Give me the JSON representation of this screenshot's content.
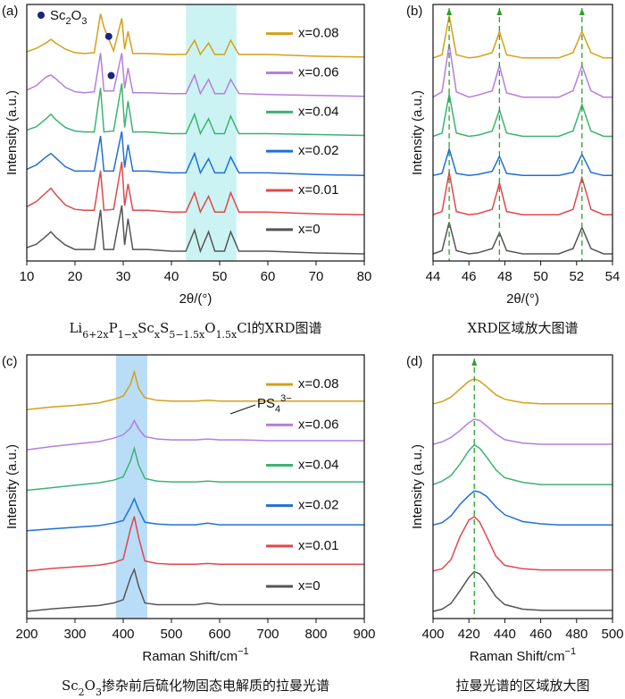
{
  "chart_data": [
    {
      "type": "line",
      "panel_label": "(a)",
      "ylabel": "Intensity (a.u.)",
      "xlabel": [
        {
          "t": "2θ/(°)"
        }
      ],
      "caption": [
        {
          "t": "Li"
        },
        {
          "t": "6+2x",
          "s": "sub"
        },
        {
          "t": "P"
        },
        {
          "t": "1−x",
          "s": "sub"
        },
        {
          "t": "Sc"
        },
        {
          "t": "x",
          "s": "sub"
        },
        {
          "t": "S"
        },
        {
          "t": "5−1.5x",
          "s": "sub"
        },
        {
          "t": "O"
        },
        {
          "t": "1.5x",
          "s": "sub"
        },
        {
          "t": "Cl的XRD图谱"
        }
      ],
      "marker_legend": [
        {
          "t": "Sc"
        },
        {
          "t": "2",
          "s": "sub"
        },
        {
          "t": "O"
        },
        {
          "t": "3",
          "s": "sub"
        }
      ],
      "marker_color": "#1a237e",
      "xlim": [
        10,
        80
      ],
      "xticks": [
        10,
        20,
        30,
        40,
        50,
        60,
        70,
        80
      ],
      "highlight": [
        43,
        53.5
      ],
      "highlight_color": "#bff0f0",
      "legend": true,
      "x": [
        10,
        12,
        14,
        15,
        16,
        18,
        20,
        22,
        24,
        25.3,
        26,
        28,
        29.7,
        30.3,
        31,
        32,
        35,
        40,
        43,
        44.8,
        46,
        47.7,
        49,
        51,
        52.3,
        54,
        60,
        70,
        80
      ],
      "series": [
        {
          "name": "x=0.08",
          "color": "#d4a017",
          "marker_x": 27,
          "values": [
            1.2,
            1.6,
            2.2,
            2.6,
            2.2,
            1.5,
            1.1,
            1,
            1.1,
            5.5,
            4,
            1.3,
            5,
            1.5,
            3.5,
            1,
            1,
            0.9,
            0.9,
            2.5,
            0.9,
            2.2,
            0.9,
            0.9,
            2.5,
            0.9,
            0.9,
            0.7,
            0.6
          ]
        },
        {
          "name": "x=0.06",
          "color": "#b57edc",
          "marker_x": 27.5,
          "values": [
            1.3,
            1.8,
            2.8,
            3,
            2.6,
            1.6,
            1.1,
            1,
            1.1,
            5.5,
            1.2,
            1.2,
            5.5,
            1.5,
            3.8,
            1,
            1,
            0.9,
            0.9,
            3,
            0.9,
            2.5,
            0.9,
            0.9,
            2.5,
            0.9,
            0.8,
            0.7,
            0.6
          ]
        },
        {
          "name": "x=0.04",
          "color": "#3cb371",
          "values": [
            1.2,
            1.6,
            2.5,
            3,
            2.4,
            1.5,
            1.1,
            1,
            1,
            6,
            1,
            1.1,
            6.5,
            1.5,
            4.5,
            1,
            1,
            0.8,
            0.8,
            3,
            0.8,
            2.5,
            0.8,
            0.8,
            2.8,
            0.8,
            0.8,
            0.7,
            0.6
          ]
        },
        {
          "name": "x=0.02",
          "color": "#1f6fd6",
          "values": [
            1.2,
            1.7,
            2.6,
            3,
            2.5,
            1.5,
            1,
            1,
            1,
            5,
            1,
            1,
            5.5,
            1.4,
            4,
            1,
            1,
            0.8,
            0.8,
            3,
            0.8,
            2.4,
            0.8,
            0.8,
            2.6,
            0.8,
            0.8,
            0.6,
            0.5
          ]
        },
        {
          "name": "x=0.01",
          "color": "#e0474c",
          "values": [
            1.4,
            2,
            3,
            3.5,
            2.8,
            1.6,
            1.1,
            1,
            1,
            5.5,
            1,
            1.1,
            6.5,
            1.5,
            4,
            1,
            1,
            0.8,
            0.8,
            3,
            0.8,
            2.6,
            0.8,
            0.8,
            3,
            0.8,
            0.8,
            0.6,
            0.5
          ]
        },
        {
          "name": "x=0",
          "color": "#555555",
          "values": [
            1.2,
            1.6,
            2.5,
            3,
            2.4,
            1.5,
            1,
            1,
            1,
            5.5,
            1,
            1,
            6,
            1.5,
            4.5,
            1,
            1,
            0.8,
            0.8,
            3.2,
            0.8,
            3,
            0.8,
            0.8,
            3,
            0.8,
            0.8,
            0.6,
            0.5
          ]
        }
      ]
    },
    {
      "type": "line",
      "panel_label": "(b)",
      "ylabel": "Intensity (a.u.)",
      "xlabel": [
        {
          "t": "2θ/(°)"
        }
      ],
      "caption": [
        {
          "t": "XRD区域放大图谱"
        }
      ],
      "xlim": [
        44,
        54
      ],
      "xticks": [
        44,
        46,
        48,
        50,
        52,
        54
      ],
      "guides": [
        44.9,
        47.7,
        52.3
      ],
      "guide_color": "#2ca02c",
      "legend": false,
      "x": [
        44,
        44.5,
        44.9,
        45.3,
        46,
        46.5,
        47.3,
        47.7,
        48.1,
        49,
        50,
        51,
        51.8,
        52.3,
        52.8,
        53.5,
        54
      ],
      "series": [
        {
          "color": "#d4a017",
          "values": [
            1,
            1.3,
            5,
            1.3,
            1,
            1.1,
            1.5,
            3.5,
            1.3,
            1,
            1,
            1,
            1.5,
            3.5,
            1.5,
            1,
            1
          ]
        },
        {
          "color": "#b57edc",
          "values": [
            1,
            1.5,
            6,
            1.5,
            1,
            1.2,
            1.6,
            4,
            1.4,
            1,
            1,
            1,
            1.6,
            4,
            1.6,
            1,
            1
          ]
        },
        {
          "color": "#3cb371",
          "values": [
            1,
            1.3,
            5,
            1.3,
            1,
            1.1,
            1.5,
            3.5,
            1.3,
            1,
            1,
            1,
            1.5,
            4,
            1.5,
            1,
            1
          ]
        },
        {
          "color": "#1f6fd6",
          "values": [
            1,
            1.2,
            3.5,
            1.2,
            1,
            1.1,
            1.4,
            2.8,
            1.2,
            1,
            1,
            1,
            1.3,
            3,
            1.3,
            1,
            1
          ]
        },
        {
          "color": "#e0474c",
          "values": [
            1,
            1.3,
            5,
            1.3,
            1,
            1.1,
            1.5,
            4,
            1.3,
            1,
            1,
            1,
            1.5,
            4.5,
            1.5,
            1,
            1
          ]
        },
        {
          "color": "#555555",
          "values": [
            1,
            1.3,
            4,
            1.3,
            1,
            1.1,
            1.5,
            3,
            1.3,
            1,
            1,
            1,
            1.5,
            3.5,
            1.5,
            1,
            1
          ]
        }
      ]
    },
    {
      "type": "line",
      "panel_label": "(c)",
      "ylabel": "Intensity (a.u.)",
      "xlabel": [
        {
          "t": "Raman Shift/cm"
        },
        {
          "t": "−1",
          "s": "sup"
        }
      ],
      "caption": [
        {
          "t": "Sc"
        },
        {
          "t": "2",
          "s": "sub"
        },
        {
          "t": "O"
        },
        {
          "t": "3",
          "s": "sub"
        },
        {
          "t": "掺杂前后硫化物固态电解质的拉曼光谱"
        }
      ],
      "annotation": [
        {
          "t": "PS"
        },
        {
          "t": "4",
          "s": "sub"
        },
        {
          "t": "3−",
          "s": "sup"
        }
      ],
      "xlim": [
        200,
        900
      ],
      "xticks": [
        200,
        300,
        400,
        500,
        600,
        700,
        800,
        900
      ],
      "highlight": [
        385,
        450
      ],
      "highlight_color": "#a8d4f5",
      "legend": true,
      "x": [
        200,
        250,
        300,
        350,
        380,
        400,
        415,
        423,
        432,
        445,
        470,
        500,
        550,
        575,
        600,
        650,
        700,
        750,
        800,
        850,
        900
      ],
      "series": [
        {
          "name": "x=0.08",
          "color": "#d4a017",
          "values": [
            1,
            1.3,
            1.5,
            1.8,
            2.2,
            2.6,
            4,
            5.5,
            3.5,
            2.4,
            2.1,
            2,
            2,
            2.1,
            2,
            2,
            2,
            2,
            2,
            2,
            2
          ]
        },
        {
          "name": "x=0.06",
          "color": "#b57edc",
          "values": [
            1,
            1.4,
            1.7,
            2,
            2.4,
            2.8,
            3.6,
            4.5,
            3.5,
            2.6,
            2.3,
            2.2,
            2.2,
            2.3,
            2.2,
            2.2,
            2.1,
            2.1,
            2.1,
            2.1,
            2.1
          ]
        },
        {
          "name": "x=0.04",
          "color": "#3cb371",
          "values": [
            1,
            1.3,
            1.6,
            1.9,
            2.2,
            2.6,
            4.5,
            6,
            4,
            2.4,
            2.1,
            2,
            2,
            2.1,
            2,
            2,
            2,
            2,
            2,
            2,
            2
          ]
        },
        {
          "name": "x=0.02",
          "color": "#1f6fd6",
          "values": [
            1,
            1.2,
            1.4,
            1.6,
            1.9,
            2.2,
            3.8,
            4.8,
            3.5,
            2,
            1.8,
            1.7,
            1.7,
            1.9,
            1.7,
            1.7,
            1.7,
            1.7,
            1.7,
            1.7,
            1.7
          ]
        },
        {
          "name": "x=0.01",
          "color": "#e0474c",
          "values": [
            1,
            1.3,
            1.5,
            1.7,
            2,
            2.4,
            6,
            7.5,
            5,
            2.2,
            1.9,
            1.8,
            1.8,
            1.9,
            1.8,
            1.8,
            1.8,
            1.8,
            1.8,
            1.8,
            1.8
          ]
        },
        {
          "name": "x=0",
          "color": "#555555",
          "values": [
            1,
            1.3,
            1.5,
            1.7,
            2,
            2.4,
            5,
            6,
            4,
            2,
            1.8,
            1.8,
            1.8,
            2,
            1.8,
            1.8,
            1.8,
            1.8,
            1.8,
            1.8,
            1.8
          ]
        }
      ]
    },
    {
      "type": "line",
      "panel_label": "(d)",
      "ylabel": "Intensity (a.u.)",
      "xlabel": [
        {
          "t": "Raman Shift/cm"
        },
        {
          "t": "−1",
          "s": "sup"
        }
      ],
      "caption": [
        {
          "t": "拉曼光谱的区域放大图"
        }
      ],
      "xlim": [
        400,
        500
      ],
      "xticks": [
        400,
        420,
        440,
        460,
        480,
        500
      ],
      "guides": [
        423
      ],
      "guide_color": "#2ca02c",
      "legend": false,
      "x": [
        400,
        405,
        410,
        415,
        420,
        423,
        426,
        430,
        435,
        440,
        450,
        460,
        470,
        480,
        490,
        500
      ],
      "series": [
        {
          "color": "#d4a017",
          "values": [
            2,
            2.2,
            2.6,
            3.3,
            4,
            4.2,
            4,
            3.5,
            2.8,
            2.4,
            2.1,
            2,
            2,
            2,
            2,
            2
          ]
        },
        {
          "color": "#b57edc",
          "values": [
            2,
            2.2,
            2.6,
            3.2,
            3.9,
            4.2,
            4.1,
            3.6,
            2.9,
            2.4,
            2.1,
            2,
            2,
            2,
            2,
            2
          ]
        },
        {
          "color": "#3cb371",
          "values": [
            2,
            2.3,
            2.8,
            3.8,
            5,
            5.5,
            5.2,
            4.4,
            3.3,
            2.6,
            2.2,
            2,
            2,
            2,
            2,
            2
          ]
        },
        {
          "color": "#1f6fd6",
          "values": [
            2,
            2.2,
            2.8,
            3.8,
            4.6,
            5,
            4.9,
            4.5,
            3.6,
            2.9,
            2.3,
            2.1,
            2,
            2,
            2,
            2
          ]
        },
        {
          "color": "#e0474c",
          "values": [
            1.5,
            1.7,
            2.5,
            4.5,
            6,
            6.3,
            5.8,
            4.5,
            2.8,
            2,
            1.7,
            1.6,
            1.6,
            1.6,
            1.6,
            1.6
          ]
        },
        {
          "color": "#555555",
          "values": [
            1.5,
            1.7,
            2.2,
            3.3,
            4.5,
            5,
            4.8,
            4,
            2.8,
            2.1,
            1.7,
            1.6,
            1.6,
            1.6,
            1.6,
            1.6
          ]
        }
      ]
    }
  ]
}
